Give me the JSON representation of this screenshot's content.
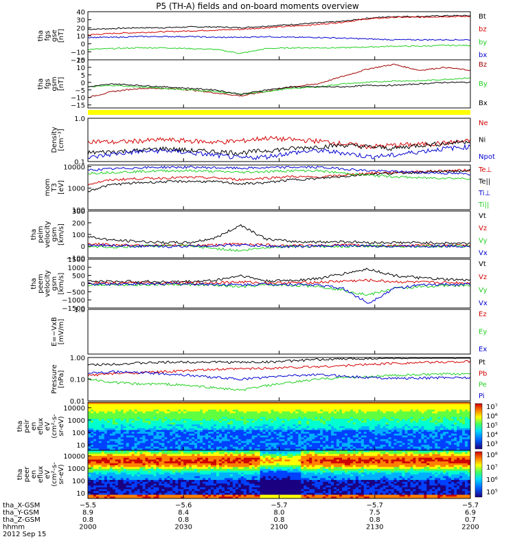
{
  "title": "P5 (TH-A) fields and on-board moments overview",
  "colors": {
    "black": "#000000",
    "red": "#d40000",
    "green": "#22d022",
    "blue": "#0000d0",
    "yellow": "#ffff00",
    "darkred": "#a00000"
  },
  "chart_data": [
    {
      "id": "fgs_gse",
      "type": "line",
      "ylabel": [
        "tha",
        "fgs",
        "gse",
        "[nT]"
      ],
      "ylim": [
        -20,
        40
      ],
      "yticks": [
        "40",
        "30",
        "20",
        "10",
        "0",
        "−10",
        "−20"
      ],
      "ytick_values": [
        40,
        30,
        20,
        10,
        0,
        -10,
        -20
      ],
      "series": [
        {
          "name": "Bt",
          "color": "black",
          "values": [
            18,
            19,
            20,
            20,
            21,
            21,
            20,
            22,
            24,
            26,
            28,
            32,
            34,
            34,
            35,
            35
          ]
        },
        {
          "name": "bz",
          "color": "red",
          "values": [
            11,
            13,
            14,
            15,
            16,
            17,
            18,
            20,
            22,
            24,
            27,
            31,
            33,
            33,
            34,
            34
          ]
        },
        {
          "name": "by",
          "color": "green",
          "values": [
            -7,
            -6,
            -5,
            -5,
            -6,
            -7,
            -12,
            -6,
            -5,
            -5,
            -5,
            -4,
            -3,
            -3,
            -2,
            -2
          ]
        },
        {
          "name": "bx",
          "color": "blue",
          "values": [
            8,
            8,
            9,
            9,
            9,
            8,
            8,
            9,
            8,
            8,
            7,
            6,
            5,
            5,
            5,
            5
          ]
        }
      ],
      "legend": [
        "Bt",
        "bz",
        "by",
        "bx"
      ]
    },
    {
      "id": "fgs_gsm",
      "type": "line",
      "ylabel": [
        "tha",
        "fgs",
        "gsm",
        "[nT]"
      ],
      "ylim": [
        -17,
        15
      ],
      "yticks": [
        "15",
        "10",
        "5",
        "0",
        "−5",
        "−10",
        "−15"
      ],
      "ytick_values": [
        15,
        10,
        5,
        0,
        -5,
        -10,
        -15
      ],
      "series": [
        {
          "name": "Bz",
          "color": "darkred",
          "values": [
            -10,
            -6,
            -4,
            -4,
            -5,
            -7,
            -9,
            -6,
            -3,
            -1,
            4,
            9,
            12,
            8,
            10,
            8
          ]
        },
        {
          "name": "By",
          "color": "green",
          "values": [
            -3,
            -2,
            -3,
            -4,
            -5,
            -6,
            -8,
            -6,
            -4,
            -3,
            -1,
            0,
            1,
            1,
            2,
            3
          ]
        },
        {
          "name": "Bx",
          "color": "black",
          "values": [
            -3,
            -1,
            -2,
            -3,
            -4,
            -5,
            -8,
            -5,
            -3,
            -3,
            -3,
            -2,
            -2,
            -1,
            0,
            0
          ]
        }
      ],
      "legend": [
        "Bz",
        "By",
        "Bx"
      ]
    },
    {
      "id": "density",
      "type": "line",
      "ylabel": [
        "Density",
        "[cm⁻³]"
      ],
      "log": true,
      "ylim": [
        0.1,
        1.0
      ],
      "yticks": [
        "1.0",
        "0.1"
      ],
      "ytick_values": [
        1.0,
        0.1
      ],
      "series": [
        {
          "name": "Ne",
          "color": "red",
          "values": [
            0.3,
            0.28,
            0.3,
            0.32,
            0.3,
            0.28,
            0.3,
            0.35,
            0.32,
            0.3,
            0.26,
            0.22,
            0.24,
            0.25,
            0.27,
            0.3
          ]
        },
        {
          "name": "Ni",
          "color": "black",
          "values": [
            0.16,
            0.17,
            0.18,
            0.2,
            0.18,
            0.17,
            0.16,
            0.18,
            0.2,
            0.22,
            0.24,
            0.22,
            0.2,
            0.24,
            0.26,
            0.3
          ]
        },
        {
          "name": "Npot",
          "color": "blue",
          "values": [
            0.12,
            0.15,
            0.17,
            0.18,
            0.16,
            0.14,
            0.12,
            0.13,
            0.16,
            0.18,
            0.16,
            0.13,
            0.14,
            0.17,
            0.2,
            0.22
          ]
        }
      ],
      "legend": [
        "Ne",
        "Ni",
        "Npot"
      ]
    },
    {
      "id": "temperature",
      "type": "line",
      "ylabel": [
        "mom",
        "T3",
        "[eV]"
      ],
      "log": true,
      "ylim": [
        100,
        12000
      ],
      "yticks": [
        "10000",
        "1000",
        "100"
      ],
      "ytick_values": [
        10000,
        1000,
        100
      ],
      "series": [
        {
          "name": "Te⊥",
          "color": "red",
          "values": [
            1500,
            2500,
            2800,
            3000,
            3200,
            3000,
            2500,
            3000,
            3500,
            3200,
            4000,
            5000,
            5500,
            6000,
            6500,
            7000
          ]
        },
        {
          "name": "Te||",
          "color": "black",
          "values": [
            700,
            1500,
            1800,
            2000,
            2100,
            2000,
            1600,
            1800,
            2500,
            2800,
            3500,
            4500,
            5000,
            5500,
            6000,
            6500
          ]
        },
        {
          "name": "Ti⊥",
          "color": "blue",
          "values": [
            7000,
            8000,
            9000,
            9500,
            9500,
            9000,
            8500,
            9000,
            9500,
            9500,
            8000,
            6500,
            6000,
            5500,
            5000,
            4500
          ]
        },
        {
          "name": "Ti||",
          "color": "green",
          "values": [
            5000,
            5500,
            6000,
            6500,
            6500,
            6000,
            5500,
            6000,
            6500,
            6500,
            5000,
            4000,
            3500,
            3000,
            3000,
            2800
          ]
        }
      ],
      "legend": [
        "Te⊥",
        "Te||",
        "Ti⊥",
        "Ti||"
      ]
    },
    {
      "id": "peim_velocity",
      "type": "line",
      "ylabel": [
        "tha",
        "peim",
        "velocity",
        "gsm",
        "[km/s]"
      ],
      "ylim": [
        -100,
        300
      ],
      "yticks": [
        "300",
        "200",
        "100",
        "0",
        "−100"
      ],
      "ytick_values": [
        300,
        200,
        100,
        0,
        -100
      ],
      "series": [
        {
          "name": "Vt",
          "color": "black",
          "values": [
            80,
            50,
            40,
            30,
            30,
            70,
            180,
            60,
            40,
            35,
            40,
            30,
            30,
            30,
            25,
            25
          ]
        },
        {
          "name": "Vz",
          "color": "red",
          "values": [
            20,
            10,
            10,
            5,
            5,
            10,
            20,
            10,
            5,
            5,
            10,
            5,
            5,
            5,
            5,
            5
          ]
        },
        {
          "name": "Vy",
          "color": "green",
          "values": [
            0,
            -10,
            0,
            5,
            0,
            -20,
            -40,
            -10,
            0,
            0,
            -5,
            0,
            0,
            0,
            0,
            0
          ]
        },
        {
          "name": "Vx",
          "color": "blue",
          "values": [
            10,
            5,
            0,
            -5,
            0,
            5,
            10,
            0,
            -5,
            0,
            5,
            0,
            0,
            0,
            0,
            0
          ]
        }
      ],
      "legend": [
        "Vt",
        "Vz",
        "Vy",
        "Vx"
      ]
    },
    {
      "id": "peem_velocity",
      "type": "line",
      "ylabel": [
        "tha",
        "peem",
        "velocity",
        "gsm",
        "[km/s]"
      ],
      "ylim": [
        -1500,
        1500
      ],
      "yticks": [
        "1500",
        "1000",
        "500",
        "0",
        "−500",
        "−1000",
        "−1500"
      ],
      "ytick_values": [
        1500,
        1000,
        500,
        0,
        -500,
        -1000,
        -1500
      ],
      "series": [
        {
          "name": "Vt",
          "color": "black",
          "values": [
            150,
            120,
            130,
            110,
            120,
            200,
            500,
            150,
            200,
            300,
            600,
            900,
            500,
            350,
            250,
            200
          ]
        },
        {
          "name": "Vz",
          "color": "red",
          "values": [
            50,
            30,
            40,
            20,
            30,
            60,
            100,
            40,
            50,
            80,
            150,
            200,
            120,
            80,
            60,
            50
          ]
        },
        {
          "name": "Vy",
          "color": "green",
          "values": [
            -80,
            -60,
            -70,
            -50,
            -60,
            -100,
            -200,
            -80,
            -100,
            -150,
            -400,
            -700,
            -300,
            -200,
            -120,
            -100
          ]
        },
        {
          "name": "Vx",
          "color": "blue",
          "values": [
            -30,
            -20,
            -30,
            -10,
            -20,
            -50,
            -80,
            -30,
            -50,
            -80,
            -300,
            -1200,
            -300,
            -100,
            -60,
            -50
          ]
        }
      ],
      "legend": [
        "Vt",
        "Vz",
        "Vy",
        "Vx"
      ]
    },
    {
      "id": "efield",
      "type": "line",
      "ylabel": [
        "E=−VxB",
        "[mV/m]"
      ],
      "ylim": [
        0,
        1.0
      ],
      "yticks": [
        "1.0"
      ],
      "ytick_values": [
        1.0
      ],
      "series": [],
      "legend": [
        "Ez",
        "Ey",
        "Ex"
      ],
      "legend_colors": [
        "red",
        "green",
        "blue"
      ]
    },
    {
      "id": "pressure",
      "type": "line",
      "ylabel": [
        "Pressure",
        "[nPa]"
      ],
      "log": true,
      "ylim": [
        0.01,
        1.0
      ],
      "yticks": [
        "1.00",
        "0.10",
        "0.01"
      ],
      "ytick_values": [
        1.0,
        0.1,
        0.01
      ],
      "series": [
        {
          "name": "Pt",
          "color": "black",
          "values": [
            0.45,
            0.5,
            0.55,
            0.6,
            0.62,
            0.62,
            0.6,
            0.62,
            0.7,
            0.8,
            0.85,
            0.9,
            0.95,
            0.95,
            1.0,
            1.0
          ]
        },
        {
          "name": "Pb",
          "color": "red",
          "values": [
            0.15,
            0.18,
            0.2,
            0.22,
            0.25,
            0.28,
            0.3,
            0.32,
            0.35,
            0.38,
            0.42,
            0.48,
            0.55,
            0.58,
            0.62,
            0.65
          ]
        },
        {
          "name": "Pe",
          "color": "green",
          "values": [
            0.1,
            0.07,
            0.06,
            0.06,
            0.05,
            0.04,
            0.03,
            0.05,
            0.07,
            0.1,
            0.12,
            0.13,
            0.15,
            0.16,
            0.17,
            0.18
          ]
        },
        {
          "name": "Pi",
          "color": "blue",
          "values": [
            0.2,
            0.22,
            0.2,
            0.18,
            0.15,
            0.12,
            0.1,
            0.12,
            0.15,
            0.16,
            0.14,
            0.12,
            0.11,
            0.11,
            0.12,
            0.12
          ]
        }
      ],
      "legend": [
        "Pt",
        "Pb",
        "Pe",
        "Pi"
      ]
    },
    {
      "id": "peir_eflux",
      "type": "heatmap",
      "ylabel": [
        "tha",
        "peir",
        "en",
        "eflux",
        "eV",
        "(cm²-s-",
        "sr-eV)"
      ],
      "yticks": [
        "10000",
        "1000",
        "100",
        "10"
      ],
      "ytick_values": [
        10000,
        1000,
        100,
        10
      ],
      "colorbar_ticks": [
        "10⁷",
        "10⁶",
        "10⁵",
        "10⁴",
        "10³"
      ]
    },
    {
      "id": "peer_eflux",
      "type": "heatmap",
      "ylabel": [
        "tha",
        "peer",
        "en",
        "eflux",
        "eV",
        "(cm²-s-",
        "sr-eV)"
      ],
      "yticks": [
        "10000",
        "1000",
        "100",
        "10"
      ],
      "ytick_values": [
        10000,
        1000,
        100,
        10
      ],
      "colorbar_ticks": [
        "10⁸",
        "10⁷",
        "10⁶",
        "10⁵"
      ]
    }
  ],
  "xaxis": {
    "rows": [
      {
        "label": "tha_X-GSM",
        "values": [
          "−5.5",
          "−5.6",
          "−5.7",
          "−5.7",
          "−5.7"
        ]
      },
      {
        "label": "tha_Y-GSM",
        "values": [
          "8.9",
          "8.4",
          "8.0",
          "7.5",
          "6.9"
        ]
      },
      {
        "label": "tha_Z-GSM",
        "values": [
          "0.8",
          "0.8",
          "0.8",
          "0.8",
          "0.7"
        ]
      },
      {
        "label": "hhmm",
        "values": [
          "2000",
          "2030",
          "2100",
          "2130",
          "2200"
        ]
      }
    ],
    "date": "2012 Sep 15"
  }
}
